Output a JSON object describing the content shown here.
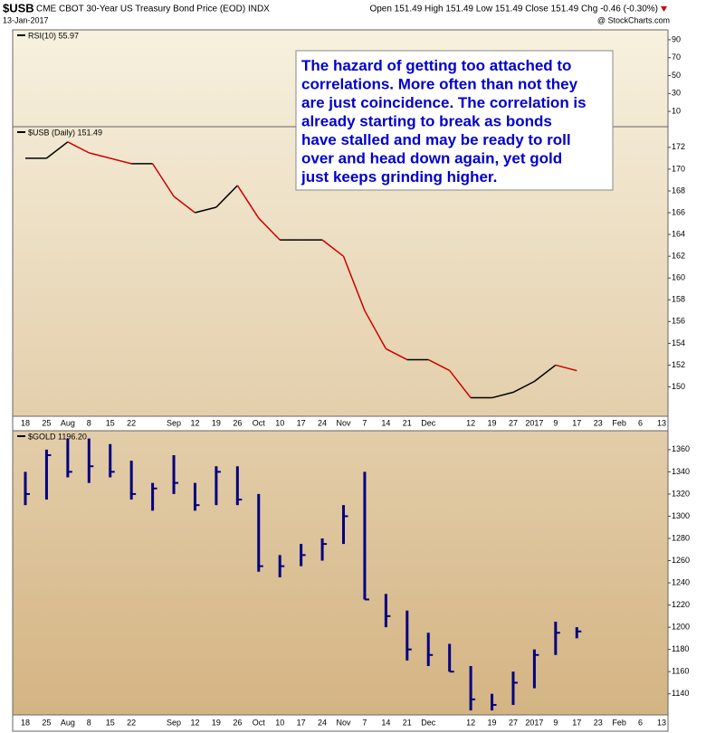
{
  "header": {
    "symbol": "$USB",
    "title": "CME CBOT 30-Year US Treasury Bond Price (EOD) INDX",
    "date": "13-Jan-2017",
    "source": "@ StockCharts.com",
    "quote": "Open 151.49 High 151.49 Low 151.49 Close 151.49 Chg -0.46 (-0.30%)"
  },
  "chart_data": [
    {
      "type": "indicator",
      "legend": "RSI(10) 55.97",
      "ylim": [
        -7,
        101
      ],
      "yticks": [
        90,
        70,
        50,
        30,
        10
      ]
    },
    {
      "type": "line",
      "legend": "$USB (Daily) 151.49",
      "annotation": [
        "The hazard of getting too attached to",
        "correlations. More often than not they",
        "are just coincidence. The correlation is",
        "already starting to break as bonds",
        "have stalled and may be ready to roll",
        "over and head down again, yet gold",
        "just keeps grinding higher."
      ],
      "categories": [
        "18",
        "25",
        "Aug",
        "8",
        "15",
        "22",
        null,
        "Sep",
        "12",
        "19",
        "26",
        "Oct",
        "10",
        "17",
        "24",
        "Nov",
        "7",
        "14",
        "21",
        "Dec",
        null,
        "12",
        "19",
        "27",
        "2017",
        "9",
        "17",
        "23",
        "Feb",
        "6",
        "13"
      ],
      "values": [
        171,
        171,
        172.5,
        171.5,
        171,
        170.5,
        170.5,
        167.5,
        166,
        166.5,
        168.5,
        165.5,
        163.5,
        163.5,
        163.5,
        162,
        157,
        153.5,
        152.5,
        152.5,
        151.5,
        149,
        149,
        149.5,
        150.5,
        152,
        151.49,
        null,
        null,
        null,
        null
      ],
      "up_color": "#000000",
      "down_color": "#cc0000",
      "ylim": [
        147.3,
        173.9
      ],
      "yticks": [
        150,
        152,
        154,
        156,
        158,
        160,
        162,
        164,
        166,
        168,
        170,
        172
      ],
      "grid": false
    },
    {
      "type": "ohlc",
      "legend": "$GOLD 1196.20",
      "color": "#000080",
      "categories": [
        "18",
        "25",
        "Aug",
        "8",
        "15",
        "22",
        null,
        "Sep",
        "12",
        "19",
        "26",
        "Oct",
        "10",
        "17",
        "24",
        "Nov",
        "7",
        "14",
        "21",
        "Dec",
        null,
        "12",
        "19",
        "27",
        "2017",
        "9",
        "17",
        "23",
        "Feb",
        "6",
        "13"
      ],
      "high": [
        1340,
        1360,
        1370,
        1370,
        1365,
        1350,
        1330,
        1355,
        1330,
        1345,
        1345,
        1320,
        1265,
        1275,
        1280,
        1310,
        1340,
        1230,
        1215,
        1195,
        1185,
        1165,
        1140,
        1160,
        1180,
        1205,
        1200,
        null,
        null,
        null,
        null
      ],
      "low": [
        1310,
        1315,
        1335,
        1330,
        1335,
        1315,
        1305,
        1320,
        1305,
        1310,
        1310,
        1250,
        1245,
        1255,
        1260,
        1275,
        1225,
        1200,
        1170,
        1165,
        1160,
        1125,
        1125,
        1130,
        1145,
        1175,
        1190,
        null,
        null,
        null,
        null
      ],
      "close": [
        1320,
        1355,
        1340,
        1345,
        1340,
        1320,
        1325,
        1330,
        1310,
        1340,
        1315,
        1255,
        1255,
        1265,
        1275,
        1300,
        1225,
        1210,
        1180,
        1175,
        1160,
        1135,
        1130,
        1150,
        1175,
        1195,
        1196.2,
        null,
        null,
        null,
        null
      ],
      "ylim": [
        1121,
        1377
      ],
      "yticks": [
        1140,
        1160,
        1180,
        1200,
        1220,
        1240,
        1260,
        1280,
        1300,
        1320,
        1340,
        1360
      ],
      "grid": false
    }
  ]
}
